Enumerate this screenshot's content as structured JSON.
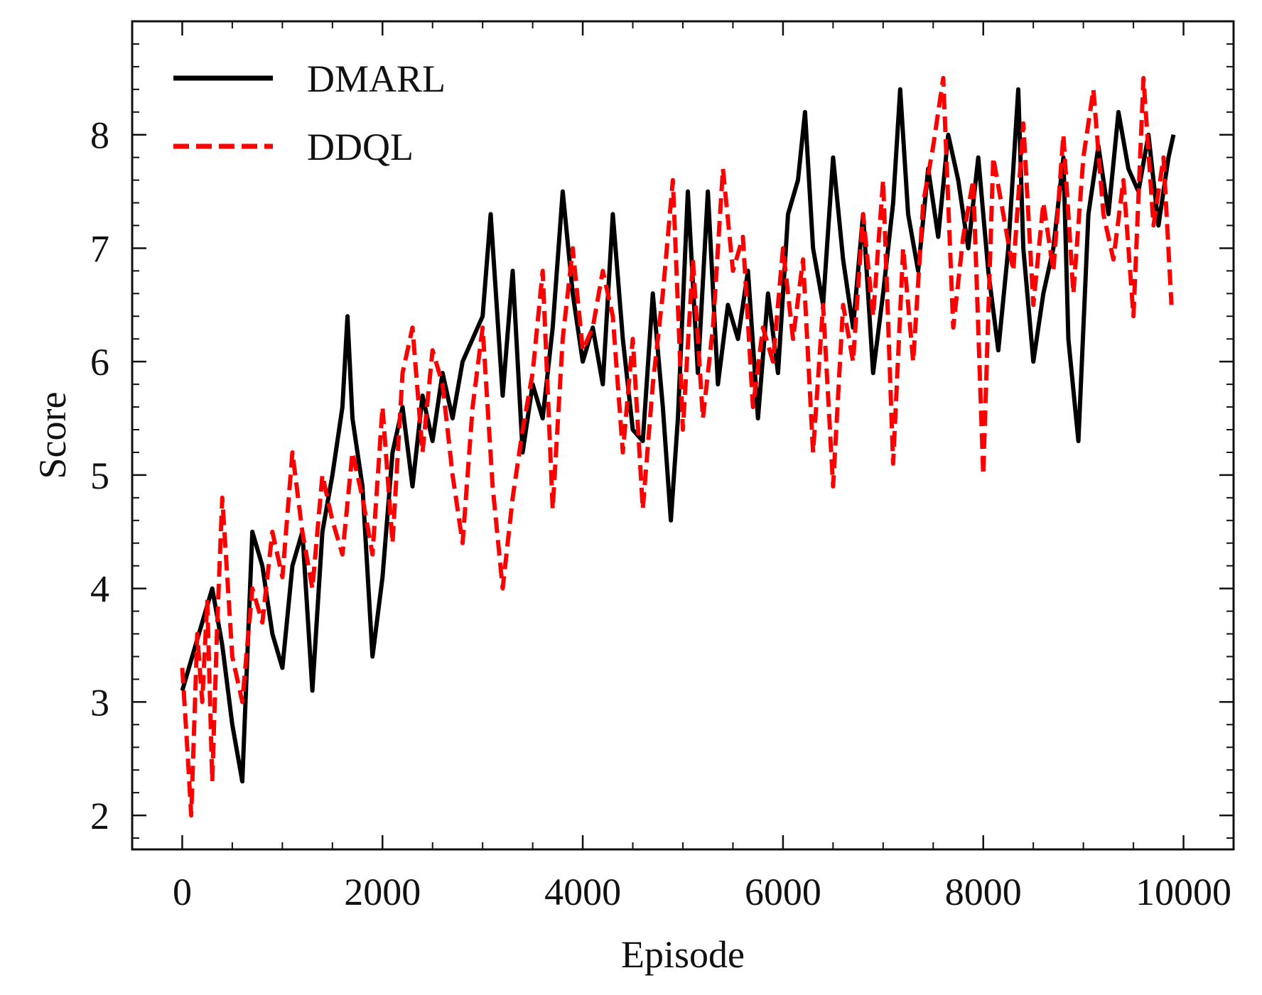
{
  "chart_data": {
    "type": "line",
    "title": "",
    "xlabel": "Episode",
    "ylabel": "Score",
    "xlim": [
      -500,
      10500
    ],
    "ylim": [
      1.7,
      9.0
    ],
    "xticks": [
      0,
      2000,
      4000,
      6000,
      8000,
      10000
    ],
    "xtick_labels": [
      "0",
      "2000",
      "4000",
      "6000",
      "8000",
      "10000"
    ],
    "yticks": [
      2,
      3,
      4,
      5,
      6,
      7,
      8
    ],
    "ytick_labels": [
      "2",
      "3",
      "4",
      "5",
      "6",
      "7",
      "8"
    ],
    "grid": false,
    "legend_position": "top-left",
    "series": [
      {
        "name": "DMARL",
        "color": "#000000",
        "style": "solid",
        "x": [
          0,
          100,
          200,
          300,
          400,
          500,
          600,
          700,
          800,
          900,
          1000,
          1100,
          1200,
          1300,
          1400,
          1500,
          1600,
          1650,
          1700,
          1800,
          1900,
          2000,
          2100,
          2200,
          2300,
          2400,
          2500,
          2600,
          2700,
          2800,
          2900,
          3000,
          3080,
          3200,
          3300,
          3400,
          3500,
          3600,
          3700,
          3800,
          3900,
          4000,
          4100,
          4200,
          4300,
          4400,
          4500,
          4600,
          4700,
          4800,
          4880,
          4950,
          5050,
          5150,
          5250,
          5350,
          5450,
          5550,
          5650,
          5750,
          5850,
          5950,
          6050,
          6150,
          6220,
          6300,
          6400,
          6500,
          6600,
          6700,
          6800,
          6900,
          7000,
          7100,
          7170,
          7250,
          7350,
          7450,
          7550,
          7650,
          7750,
          7850,
          7950,
          8050,
          8150,
          8250,
          8350,
          8400,
          8500,
          8600,
          8700,
          8800,
          8850,
          8950,
          9050,
          9150,
          9250,
          9350,
          9450,
          9550,
          9650,
          9750,
          9850,
          9900
        ],
        "values": [
          3.1,
          3.4,
          3.7,
          4.0,
          3.5,
          2.8,
          2.3,
          4.5,
          4.2,
          3.6,
          3.3,
          4.2,
          4.5,
          3.1,
          4.5,
          5.0,
          5.6,
          6.4,
          5.5,
          4.9,
          3.4,
          4.1,
          5.2,
          5.6,
          4.9,
          5.7,
          5.3,
          5.9,
          5.5,
          6.0,
          6.2,
          6.4,
          7.3,
          5.7,
          6.8,
          5.2,
          5.8,
          5.5,
          6.3,
          7.5,
          6.6,
          6.0,
          6.3,
          5.8,
          7.3,
          6.2,
          5.4,
          5.3,
          6.6,
          5.6,
          4.6,
          5.5,
          7.5,
          5.9,
          7.5,
          5.8,
          6.5,
          6.2,
          6.8,
          5.5,
          6.6,
          5.9,
          7.3,
          7.6,
          8.2,
          7.0,
          6.5,
          7.8,
          6.9,
          6.3,
          7.3,
          5.9,
          6.6,
          7.4,
          8.4,
          7.3,
          6.8,
          7.7,
          7.1,
          8.0,
          7.6,
          7.0,
          7.8,
          6.8,
          6.1,
          7.0,
          8.4,
          7.0,
          6.0,
          6.6,
          7.0,
          7.8,
          6.2,
          5.3,
          7.3,
          7.9,
          7.3,
          8.2,
          7.7,
          7.5,
          8.0,
          7.2,
          7.8,
          8.0
        ]
      },
      {
        "name": "DDQL",
        "color": "#ff0000",
        "style": "dashed",
        "x": [
          0,
          50,
          90,
          150,
          200,
          250,
          300,
          350,
          400,
          500,
          600,
          700,
          800,
          900,
          1000,
          1100,
          1200,
          1300,
          1400,
          1500,
          1600,
          1700,
          1800,
          1900,
          2000,
          2100,
          2200,
          2300,
          2400,
          2500,
          2600,
          2700,
          2800,
          2900,
          3000,
          3100,
          3200,
          3300,
          3400,
          3500,
          3600,
          3700,
          3800,
          3900,
          4000,
          4100,
          4200,
          4300,
          4400,
          4500,
          4600,
          4700,
          4800,
          4900,
          5000,
          5100,
          5200,
          5300,
          5400,
          5500,
          5600,
          5700,
          5800,
          5900,
          6000,
          6100,
          6200,
          6300,
          6400,
          6500,
          6600,
          6700,
          6800,
          6900,
          7000,
          7100,
          7200,
          7300,
          7400,
          7500,
          7600,
          7700,
          7800,
          7900,
          8000,
          8100,
          8200,
          8300,
          8400,
          8500,
          8600,
          8700,
          8800,
          8900,
          9000,
          9100,
          9200,
          9300,
          9400,
          9500,
          9600,
          9700,
          9800,
          9880
        ],
        "values": [
          3.3,
          2.6,
          2.0,
          3.6,
          3.0,
          3.9,
          2.3,
          3.7,
          4.8,
          3.4,
          3.0,
          4.0,
          3.7,
          4.5,
          4.1,
          5.2,
          4.5,
          4.0,
          5.0,
          4.6,
          4.3,
          5.2,
          4.8,
          4.3,
          5.6,
          4.4,
          5.9,
          6.3,
          5.2,
          6.1,
          5.8,
          5.0,
          4.4,
          5.6,
          6.3,
          4.9,
          4.0,
          4.8,
          5.4,
          5.9,
          6.8,
          4.7,
          6.2,
          7.0,
          6.1,
          6.3,
          6.8,
          6.4,
          5.2,
          6.2,
          4.7,
          5.8,
          6.6,
          7.6,
          5.4,
          6.9,
          5.5,
          6.3,
          7.7,
          6.8,
          7.1,
          5.6,
          6.3,
          6.0,
          7.0,
          6.2,
          6.9,
          5.2,
          6.5,
          4.9,
          6.5,
          6.0,
          7.3,
          6.4,
          7.6,
          5.1,
          7.0,
          6.0,
          7.4,
          7.9,
          8.5,
          6.3,
          7.1,
          7.6,
          5.0,
          7.8,
          7.3,
          6.8,
          8.1,
          6.5,
          7.4,
          6.8,
          8.0,
          6.6,
          7.8,
          8.4,
          7.3,
          6.9,
          7.6,
          6.4,
          8.5,
          7.2,
          7.8,
          6.5
        ]
      }
    ]
  }
}
